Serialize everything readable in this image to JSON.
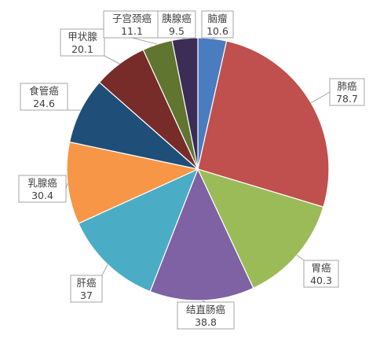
{
  "chart_data": {
    "type": "pie",
    "title": "",
    "legend": "none",
    "start": "12 o'clock, clockwise",
    "slices": [
      {
        "label": "脑瘤",
        "value": 10.6,
        "color": "#4a7cc0"
      },
      {
        "label": "肺癌",
        "value": 78.7,
        "color": "#c0504d"
      },
      {
        "label": "胃癌",
        "value": 40.3,
        "color": "#9bbb59"
      },
      {
        "label": "结直肠癌",
        "value": 38.8,
        "color": "#7e62a3"
      },
      {
        "label": "肝癌",
        "value": 37,
        "color": "#4bacc6"
      },
      {
        "label": "乳腺癌",
        "value": 30.4,
        "color": "#f79646"
      },
      {
        "label": "食管癌",
        "value": 24.6,
        "color": "#1f4e79"
      },
      {
        "label": "甲状腺",
        "value": 20.1,
        "color": "#772c2a"
      },
      {
        "label": "子宫颈癌",
        "value": 11.1,
        "color": "#5f7530"
      },
      {
        "label": "胰腺癌",
        "value": 9.5,
        "color": "#3b2d56"
      }
    ]
  }
}
